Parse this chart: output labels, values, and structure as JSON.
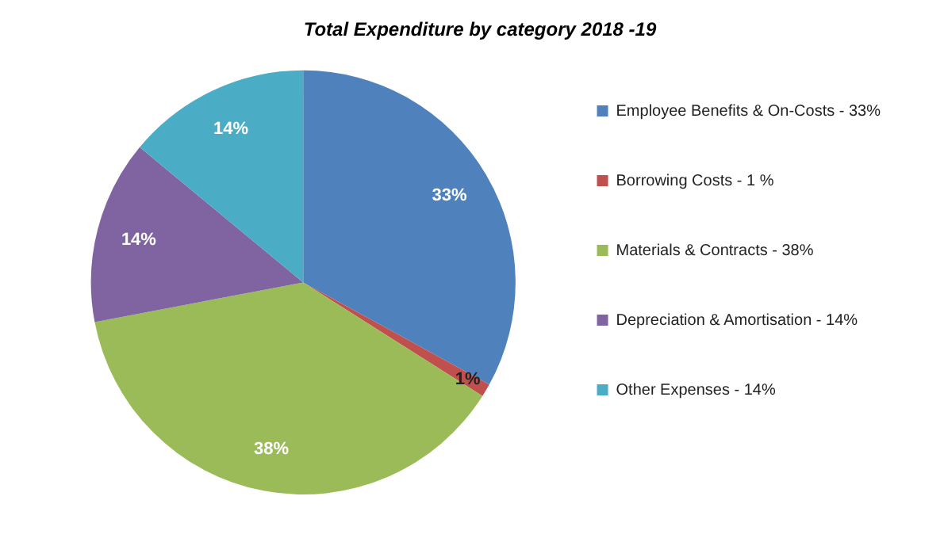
{
  "chart_data": {
    "type": "pie",
    "title": "Total Expenditure by category 2018 -19",
    "categories": [
      "Employee Benefits & On-Costs - 33%",
      "Borrowing Costs - 1 %",
      "Materials & Contracts - 38%",
      "Depreciation & Amortisation - 14%",
      "Other Expenses - 14%"
    ],
    "values": [
      33,
      1,
      38,
      14,
      14
    ],
    "colors": [
      "#4f81bd",
      "#c0504d",
      "#9bbb59",
      "#8064a2",
      "#4bacc6"
    ],
    "value_labels": [
      "33%",
      "1%",
      "38%",
      "14%",
      "14%"
    ],
    "legend": "right"
  }
}
